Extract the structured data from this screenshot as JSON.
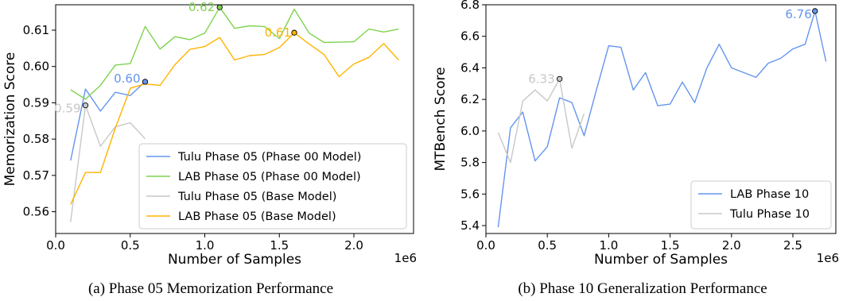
{
  "captions": {
    "left": "(a) Phase 05 Memorization Performance",
    "right": "(b) Phase 10 Generalization Performance"
  },
  "chart_data": [
    {
      "type": "line",
      "xlabel": "Number of Samples",
      "ylabel": "Memorization Score",
      "x_multiplier_label": "1e6",
      "xlim": [
        0,
        2.4
      ],
      "ylim": [
        0.554,
        0.617
      ],
      "x_ticks": [
        0.0,
        0.5,
        1.0,
        1.5,
        2.0
      ],
      "x_tick_labels": [
        "0.0",
        "0.5",
        "1.0",
        "1.5",
        "2.0"
      ],
      "y_ticks": [
        0.56,
        0.57,
        0.58,
        0.59,
        0.6,
        0.61
      ],
      "y_tick_labels": [
        "0.56",
        "0.57",
        "0.58",
        "0.59",
        "0.60",
        "0.61"
      ],
      "legend_position": "lower-right",
      "series": [
        {
          "name": "Tulu Phase 05 (Phase 00 Model)",
          "color": "#6495ED",
          "x": [
            0.1,
            0.2,
            0.3,
            0.4,
            0.5,
            0.6
          ],
          "y": [
            0.5741,
            0.5938,
            0.5877,
            0.5929,
            0.592,
            0.5958
          ],
          "best": {
            "x": 0.6,
            "y": 0.5958,
            "label": "0.60"
          }
        },
        {
          "name": "LAB Phase 05 (Phase 00 Model)",
          "color": "#7FD34E",
          "x": [
            0.1,
            0.2,
            0.3,
            0.4,
            0.5,
            0.6,
            0.7,
            0.8,
            0.9,
            1.0,
            1.1,
            1.2,
            1.3,
            1.4,
            1.5,
            1.6,
            1.7,
            1.8,
            1.9,
            2.0,
            2.1,
            2.2,
            2.3
          ],
          "y": [
            0.5936,
            0.591,
            0.5948,
            0.6004,
            0.6008,
            0.611,
            0.6048,
            0.6082,
            0.6074,
            0.6092,
            0.6163,
            0.6105,
            0.6112,
            0.611,
            0.6077,
            0.6158,
            0.6092,
            0.6066,
            0.6067,
            0.6068,
            0.6103,
            0.6095,
            0.6103
          ],
          "best": {
            "x": 1.1,
            "y": 0.6163,
            "label": "0.62"
          }
        },
        {
          "name": "Tulu Phase 05 (Base Model)",
          "color": "#C8C8C8",
          "x": [
            0.1,
            0.2,
            0.3,
            0.4,
            0.5,
            0.6
          ],
          "y": [
            0.5572,
            0.5893,
            0.578,
            0.5834,
            0.5845,
            0.5801
          ],
          "best": {
            "x": 0.2,
            "y": 0.5893,
            "label": "0.59"
          }
        },
        {
          "name": "LAB Phase 05 (Base Model)",
          "color": "#FFB300",
          "x": [
            0.1,
            0.2,
            0.3,
            0.4,
            0.5,
            0.6,
            0.7,
            0.8,
            0.9,
            1.0,
            1.1,
            1.2,
            1.3,
            1.4,
            1.5,
            1.6,
            1.7,
            1.8,
            1.9,
            2.0,
            2.1,
            2.2,
            2.3
          ],
          "y": [
            0.562,
            0.5708,
            0.5708,
            0.583,
            0.594,
            0.5952,
            0.5948,
            0.6005,
            0.6047,
            0.6055,
            0.608,
            0.6018,
            0.603,
            0.6033,
            0.6052,
            0.6093,
            0.6062,
            0.6033,
            0.5972,
            0.6007,
            0.6025,
            0.6063,
            0.6018
          ],
          "best": {
            "x": 1.6,
            "y": 0.6093,
            "label": "0.61"
          }
        }
      ]
    },
    {
      "type": "line",
      "xlabel": "Number of Samples",
      "ylabel": "MTBench Score",
      "x_multiplier_label": "1e6",
      "xlim": [
        0,
        2.85
      ],
      "ylim": [
        5.35,
        6.8
      ],
      "x_ticks": [
        0.0,
        0.5,
        1.0,
        1.5,
        2.0,
        2.5
      ],
      "x_tick_labels": [
        "0.0",
        "0.5",
        "1.0",
        "1.5",
        "2.0",
        "2.5"
      ],
      "y_ticks": [
        5.4,
        5.6,
        5.8,
        6.0,
        6.2,
        6.4,
        6.6,
        6.8
      ],
      "y_tick_labels": [
        "5.4",
        "5.6",
        "5.8",
        "6.0",
        "6.2",
        "6.4",
        "6.6",
        "6.8"
      ],
      "legend_position": "lower-right",
      "series": [
        {
          "name": "LAB Phase 10",
          "color": "#6495ED",
          "x": [
            0.1,
            0.2,
            0.3,
            0.4,
            0.5,
            0.6,
            0.7,
            0.8,
            0.9,
            1.0,
            1.1,
            1.2,
            1.3,
            1.4,
            1.5,
            1.6,
            1.7,
            1.8,
            1.9,
            2.0,
            2.1,
            2.2,
            2.3,
            2.4,
            2.5,
            2.6,
            2.68,
            2.77
          ],
          "y": [
            5.39,
            6.02,
            6.12,
            5.81,
            5.9,
            6.21,
            6.18,
            5.97,
            6.26,
            6.54,
            6.53,
            6.26,
            6.37,
            6.16,
            6.17,
            6.31,
            6.18,
            6.4,
            6.55,
            6.4,
            6.37,
            6.34,
            6.43,
            6.46,
            6.52,
            6.55,
            6.76,
            6.44
          ],
          "best": {
            "x": 2.68,
            "y": 6.76,
            "label": "6.76"
          }
        },
        {
          "name": "Tulu Phase 10",
          "color": "#C8C8C8",
          "x": [
            0.1,
            0.2,
            0.3,
            0.4,
            0.5,
            0.6,
            0.7,
            0.8
          ],
          "y": [
            5.99,
            5.8,
            6.19,
            6.26,
            6.19,
            6.33,
            5.89,
            6.11
          ],
          "best": {
            "x": 0.6,
            "y": 6.33,
            "label": "6.33"
          }
        }
      ]
    }
  ]
}
